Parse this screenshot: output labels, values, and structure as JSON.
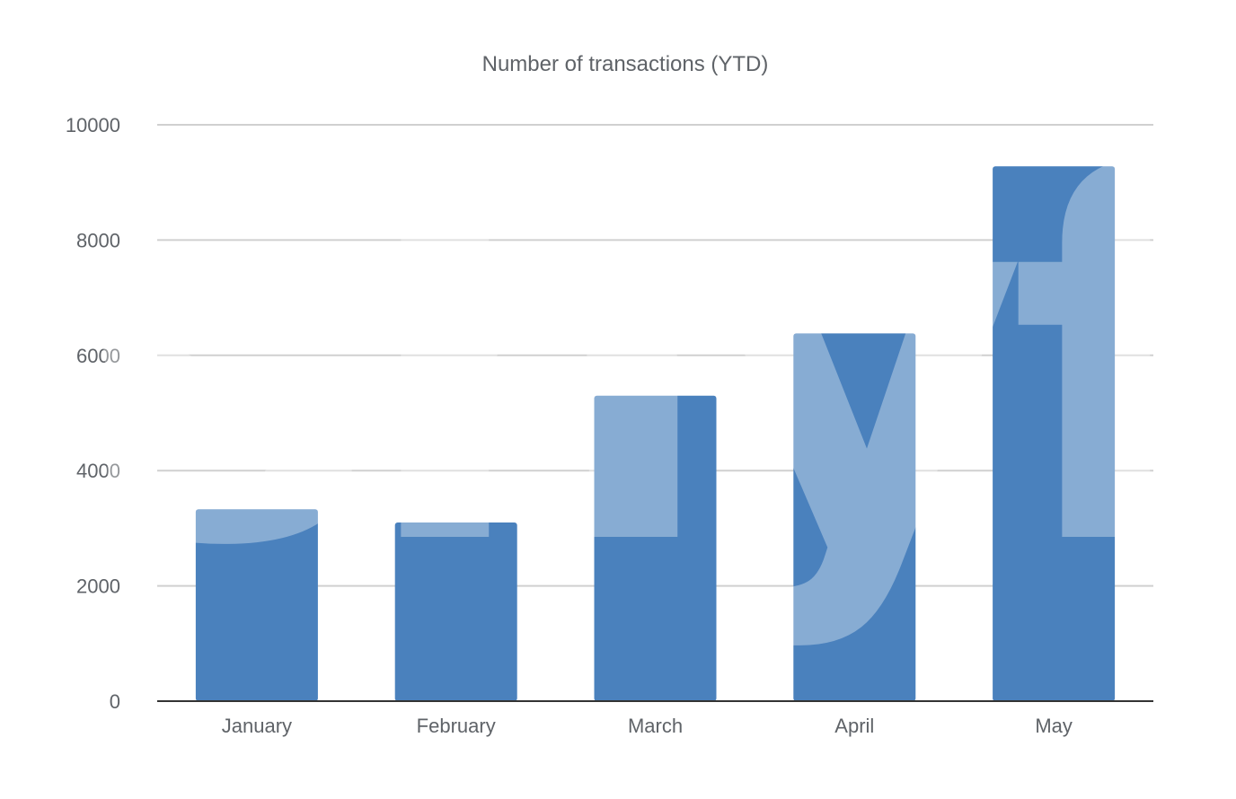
{
  "chart_data": {
    "type": "bar",
    "title": "Number of transactions (YTD)",
    "xlabel": "",
    "ylabel": "",
    "categories": [
      "January",
      "February",
      "March",
      "April",
      "May"
    ],
    "series": [
      {
        "values": [
          3330,
          3100,
          5300,
          6380,
          9280
        ]
      }
    ],
    "ylim": [
      0,
      10000
    ],
    "yticks": [
      "0",
      "2000",
      "4000",
      "6000",
      "8000",
      "10000"
    ],
    "grid": true,
    "legend": "none",
    "colors": {
      "bar": "#4a81bd",
      "grid": "#d0d0d0",
      "axis": "#333333",
      "text": "#5f6368"
    },
    "watermark": "shyft"
  }
}
